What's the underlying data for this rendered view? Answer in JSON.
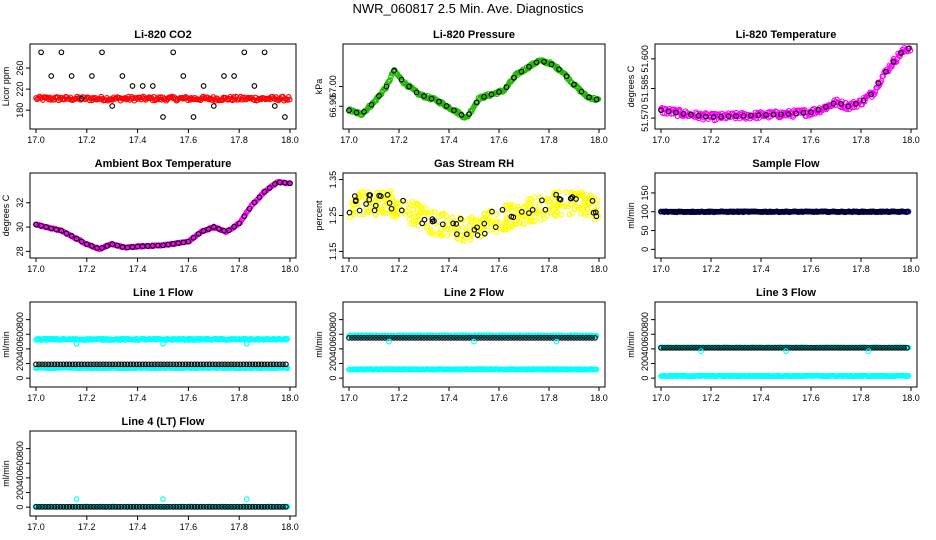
{
  "page_title": "NWR_060817  2.5 Min. Ave. Diagnostics",
  "colors": {
    "co2": "#ff0000",
    "pressure": "#22bb00",
    "temperature": "#ff00ff",
    "box_temp": "#ff00ff",
    "rh": "#ffff00",
    "sample_flow": "#0000cc",
    "line_flow": "#00ffff",
    "overlay": "#000000"
  },
  "chart_data": [
    {
      "id": "co2",
      "type": "scatter",
      "title": "Li-820 CO2",
      "ylabel": "Licor ppm",
      "xlabel": "",
      "xlim": [
        17.0,
        18.0
      ],
      "ylim": [
        150,
        300
      ],
      "xticks": [
        "17.0",
        "17.2",
        "17.4",
        "17.6",
        "17.8",
        "18.0"
      ],
      "yticks": [
        "180",
        "220",
        "260"
      ],
      "series": [
        {
          "color": "#ff0000",
          "style": "band",
          "y": 202,
          "spread": 4,
          "x0": 17.0,
          "x1": 18.0
        },
        {
          "color": "#000000",
          "style": "scatter_levels",
          "levels": [
            167,
            188,
            202,
            226,
            245,
            290
          ],
          "step": 0.04,
          "x0": 17.0,
          "x1": 18.0
        }
      ]
    },
    {
      "id": "pressure",
      "type": "line",
      "title": "Li-820 Pressure",
      "ylabel": "kPa",
      "xlabel": "",
      "xlim": [
        17.0,
        18.0
      ],
      "ylim": [
        66.8,
        67.2
      ],
      "xticks": [
        "17.0",
        "17.2",
        "17.4",
        "17.6",
        "17.8",
        "18.0"
      ],
      "yticks": [
        "66.90",
        "67.00"
      ],
      "series": [
        {
          "color": "#22bb00",
          "style": "dense_line",
          "spread": 0.008,
          "points": [
            [
              17.0,
              66.88
            ],
            [
              17.05,
              66.86
            ],
            [
              17.1,
              66.92
            ],
            [
              17.15,
              67.0
            ],
            [
              17.18,
              67.08
            ],
            [
              17.22,
              67.02
            ],
            [
              17.28,
              66.96
            ],
            [
              17.35,
              66.93
            ],
            [
              17.42,
              66.88
            ],
            [
              17.47,
              66.84
            ],
            [
              17.52,
              66.94
            ],
            [
              17.57,
              66.96
            ],
            [
              17.62,
              66.98
            ],
            [
              17.67,
              67.06
            ],
            [
              17.72,
              67.1
            ],
            [
              17.76,
              67.13
            ],
            [
              17.8,
              67.12
            ],
            [
              17.85,
              67.08
            ],
            [
              17.9,
              67.01
            ],
            [
              17.95,
              66.95
            ],
            [
              18.0,
              66.93
            ]
          ]
        },
        {
          "color": "#000000",
          "style": "sparse",
          "step": 0.03
        }
      ]
    },
    {
      "id": "temperature",
      "type": "line",
      "title": "Li-820 Temperature",
      "ylabel": "degrees C",
      "xlabel": "",
      "xlim": [
        17.0,
        18.0
      ],
      "ylim": [
        51.566,
        51.606
      ],
      "xticks": [
        "17.0",
        "17.2",
        "17.4",
        "17.6",
        "17.8",
        "18.0"
      ],
      "yticks": [
        "51.570",
        "51.585",
        "51.600"
      ],
      "series": [
        {
          "color": "#ff00ff",
          "style": "dense_line",
          "spread": 0.0018,
          "points": [
            [
              17.0,
              51.574
            ],
            [
              17.1,
              51.572
            ],
            [
              17.2,
              51.5705
            ],
            [
              17.3,
              51.571
            ],
            [
              17.4,
              51.5715
            ],
            [
              17.5,
              51.572
            ],
            [
              17.6,
              51.573
            ],
            [
              17.65,
              51.575
            ],
            [
              17.7,
              51.578
            ],
            [
              17.75,
              51.576
            ],
            [
              17.8,
              51.578
            ],
            [
              17.85,
              51.583
            ],
            [
              17.88,
              51.59
            ],
            [
              17.92,
              51.597
            ],
            [
              17.96,
              51.603
            ],
            [
              18.0,
              51.606
            ]
          ]
        },
        {
          "color": "#000000",
          "style": "sparse",
          "step": 0.03
        }
      ]
    },
    {
      "id": "box_temp",
      "type": "line",
      "title": "Ambient Box Temperature",
      "ylabel": "degrees C",
      "xlabel": "",
      "xlim": [
        17.0,
        18.0
      ],
      "ylim": [
        27.7,
        34.2
      ],
      "xticks": [
        "17.0",
        "17.2",
        "17.4",
        "17.6",
        "17.8",
        "18.0"
      ],
      "yticks": [
        "28",
        "30",
        "32"
      ],
      "series": [
        {
          "color": "#ff00ff",
          "style": "dense_line",
          "spread": 0.05,
          "points": [
            [
              17.0,
              30.2
            ],
            [
              17.1,
              29.7
            ],
            [
              17.2,
              28.6
            ],
            [
              17.25,
              28.2
            ],
            [
              17.3,
              28.6
            ],
            [
              17.35,
              28.3
            ],
            [
              17.4,
              28.4
            ],
            [
              17.5,
              28.5
            ],
            [
              17.6,
              28.8
            ],
            [
              17.65,
              29.6
            ],
            [
              17.7,
              30.0
            ],
            [
              17.75,
              29.6
            ],
            [
              17.8,
              30.3
            ],
            [
              17.85,
              31.8
            ],
            [
              17.9,
              32.9
            ],
            [
              17.95,
              33.7
            ],
            [
              18.0,
              33.6
            ]
          ]
        },
        {
          "color": "#000000",
          "style": "sparse",
          "step": 0.02
        }
      ]
    },
    {
      "id": "rh",
      "type": "scatter",
      "title": "Gas Stream RH",
      "ylabel": "percent",
      "xlabel": "",
      "xlim": [
        17.0,
        18.0
      ],
      "ylim": [
        1.14,
        1.36
      ],
      "xticks": [
        "17.0",
        "17.2",
        "17.4",
        "17.6",
        "17.8",
        "18.0"
      ],
      "yticks": [
        "1.15",
        "1.25",
        "1.35"
      ],
      "series": [
        {
          "color": "#ffff00",
          "style": "noisy",
          "count": 380,
          "spread": 0.035,
          "points": [
            [
              17.0,
              1.28
            ],
            [
              17.15,
              1.29
            ],
            [
              17.3,
              1.24
            ],
            [
              17.45,
              1.21
            ],
            [
              17.6,
              1.24
            ],
            [
              17.75,
              1.27
            ],
            [
              17.9,
              1.29
            ],
            [
              18.0,
              1.27
            ]
          ]
        },
        {
          "color": "#000000",
          "style": "noisy",
          "count": 55,
          "spread": 0.03,
          "points": [
            [
              17.0,
              1.28
            ],
            [
              17.15,
              1.29
            ],
            [
              17.3,
              1.24
            ],
            [
              17.45,
              1.21
            ],
            [
              17.6,
              1.24
            ],
            [
              17.75,
              1.27
            ],
            [
              17.9,
              1.29
            ],
            [
              18.0,
              1.27
            ]
          ]
        }
      ]
    },
    {
      "id": "sample_flow",
      "type": "scatter",
      "title": "Sample Flow",
      "ylabel": "ml/min",
      "xlabel": "",
      "xlim": [
        17.0,
        18.0
      ],
      "ylim": [
        -15,
        195
      ],
      "xticks": [
        "17.0",
        "17.2",
        "17.4",
        "17.6",
        "17.8",
        "18.0"
      ],
      "yticks": [
        "0",
        "50",
        "100",
        "150"
      ],
      "series": [
        {
          "color": "#0000cc",
          "style": "band",
          "y": 100,
          "spread": 1.5,
          "x0": 17.0,
          "x1": 17.99
        },
        {
          "color": "#000000",
          "style": "band_sparse",
          "y": 100,
          "step": 0.012,
          "x0": 17.0,
          "x1": 17.99
        }
      ]
    },
    {
      "id": "line1",
      "type": "scatter",
      "title": "Line 1 Flow",
      "ylabel": "ml/min",
      "xlabel": "",
      "xlim": [
        17.0,
        18.0
      ],
      "ylim": [
        -80,
        1000
      ],
      "xticks": [
        "17.0",
        "17.2",
        "17.4",
        "17.6",
        "17.8",
        "18.0"
      ],
      "yticks": [
        "0",
        "200",
        "400",
        "600",
        "800"
      ],
      "series": [
        {
          "color": "#00ffff",
          "style": "band",
          "y": 530,
          "spread": 10,
          "x0": 17.0,
          "x1": 17.99
        },
        {
          "color": "#00ffff",
          "style": "band",
          "y": 140,
          "spread": 5,
          "x0": 17.0,
          "x1": 17.99
        },
        {
          "color": "#000000",
          "style": "band_sparse",
          "y": 190,
          "step": 0.012,
          "x0": 17.0,
          "x1": 17.99
        },
        {
          "color": "#00ffff",
          "style": "points",
          "points": [
            [
              17.16,
              470
            ],
            [
              17.5,
              470
            ],
            [
              17.83,
              470
            ]
          ]
        }
      ]
    },
    {
      "id": "line2",
      "type": "scatter",
      "title": "Line 2 Flow",
      "ylabel": "ml/min",
      "xlabel": "",
      "xlim": [
        17.0,
        18.0
      ],
      "ylim": [
        -80,
        1000
      ],
      "xticks": [
        "17.0",
        "17.2",
        "17.4",
        "17.6",
        "17.8",
        "18.0"
      ],
      "yticks": [
        "0",
        "200",
        "400",
        "600",
        "800"
      ],
      "series": [
        {
          "color": "#00ffff",
          "style": "band",
          "y": 580,
          "spread": 8,
          "x0": 17.0,
          "x1": 17.99
        },
        {
          "color": "#00ffff",
          "style": "band",
          "y": 120,
          "spread": 5,
          "x0": 17.0,
          "x1": 17.99
        },
        {
          "color": "#000000",
          "style": "band_sparse",
          "y": 550,
          "step": 0.012,
          "x0": 17.0,
          "x1": 17.99
        },
        {
          "color": "#00ffff",
          "style": "points",
          "points": [
            [
              17.16,
              500
            ],
            [
              17.5,
              500
            ],
            [
              17.83,
              500
            ]
          ]
        }
      ]
    },
    {
      "id": "line3",
      "type": "scatter",
      "title": "Line 3 Flow",
      "ylabel": "ml/min",
      "xlabel": "",
      "xlim": [
        17.0,
        18.0
      ],
      "ylim": [
        -80,
        1000
      ],
      "xticks": [
        "17.0",
        "17.2",
        "17.4",
        "17.6",
        "17.8",
        "18.0"
      ],
      "yticks": [
        "0",
        "200",
        "400",
        "600",
        "800"
      ],
      "series": [
        {
          "color": "#00ffff",
          "style": "band",
          "y": 30,
          "spread": 5,
          "x0": 17.0,
          "x1": 17.99
        },
        {
          "color": "#00ffff",
          "style": "band",
          "y": 420,
          "spread": 5,
          "x0": 17.0,
          "x1": 17.99
        },
        {
          "color": "#000000",
          "style": "band_sparse",
          "y": 415,
          "step": 0.012,
          "x0": 17.0,
          "x1": 17.99
        },
        {
          "color": "#00ffff",
          "style": "points",
          "points": [
            [
              17.16,
              370
            ],
            [
              17.5,
              370
            ],
            [
              17.83,
              370
            ]
          ]
        }
      ]
    },
    {
      "id": "line4",
      "type": "scatter",
      "title": "Line 4 (LT) Flow",
      "ylabel": "ml/min",
      "xlabel": "",
      "xlim": [
        17.0,
        18.0
      ],
      "ylim": [
        -80,
        1000
      ],
      "xticks": [
        "17.0",
        "17.2",
        "17.4",
        "17.6",
        "17.8",
        "18.0"
      ],
      "yticks": [
        "0",
        "200",
        "400",
        "600",
        "800"
      ],
      "series": [
        {
          "color": "#00ffff",
          "style": "band",
          "y": 5,
          "spread": 4,
          "x0": 17.0,
          "x1": 17.99
        },
        {
          "color": "#000000",
          "style": "band_sparse",
          "y": 5,
          "step": 0.012,
          "x0": 17.0,
          "x1": 17.99
        },
        {
          "color": "#00ffff",
          "style": "points",
          "points": [
            [
              17.16,
              110
            ],
            [
              17.5,
              110
            ],
            [
              17.83,
              110
            ]
          ]
        }
      ]
    }
  ]
}
